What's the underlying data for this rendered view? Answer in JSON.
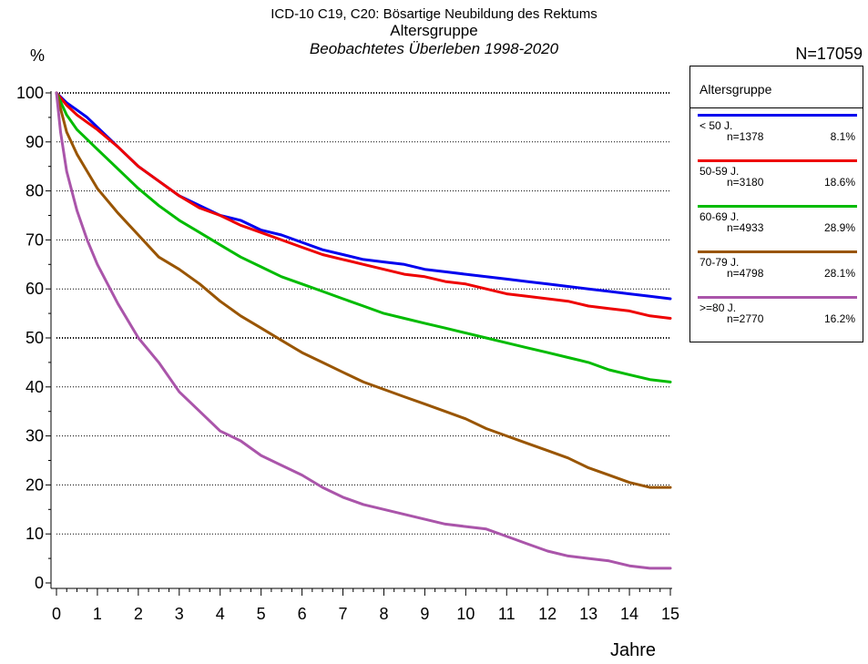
{
  "header": {
    "line1": "ICD-10 C19, C20: Bösartige Neubildung des Rektums",
    "line2": "Altersgruppe",
    "line3": "Beobachtetes Überleben 1998-2020",
    "n_total": "N=17059"
  },
  "legend": {
    "title": "Altersgruppe",
    "entries": [
      {
        "name": "< 50 J.",
        "n": "n=1378",
        "pct": "8.1%",
        "color": "#0000ee"
      },
      {
        "name": "50-59 J.",
        "n": "n=3180",
        "pct": "18.6%",
        "color": "#ee0000"
      },
      {
        "name": "60-69 J.",
        "n": "n=4933",
        "pct": "28.9%",
        "color": "#00bb00"
      },
      {
        "name": "70-79 J.",
        "n": "n=4798",
        "pct": "28.1%",
        "color": "#995500"
      },
      {
        "name": ">=80 J.",
        "n": "n=2770",
        "pct": "16.2%",
        "color": "#aa55aa"
      }
    ]
  },
  "chart_data": {
    "type": "line",
    "xlabel": "Jahre",
    "ylabel": "%",
    "xlim": [
      0,
      15
    ],
    "ylim": [
      0,
      100
    ],
    "x_ticks": [
      "0",
      "1",
      "2",
      "3",
      "4",
      "5",
      "6",
      "7",
      "8",
      "9",
      "10",
      "11",
      "12",
      "13",
      "14",
      "15"
    ],
    "y_ticks": [
      "0",
      "10",
      "20",
      "30",
      "40",
      "50",
      "60",
      "70",
      "80",
      "90",
      "100"
    ],
    "grid": "horizontal dotted",
    "legend_position": "right",
    "series": [
      {
        "name": "< 50 J.",
        "color": "#0000ee",
        "x": [
          0,
          0.25,
          0.5,
          0.75,
          1,
          1.5,
          2,
          2.5,
          3,
          3.5,
          4,
          4.5,
          5,
          5.5,
          6,
          6.5,
          7,
          7.5,
          8,
          8.5,
          9,
          9.5,
          10,
          10.5,
          11,
          11.5,
          12,
          12.5,
          13,
          13.5,
          14,
          14.5,
          15
        ],
        "y": [
          100,
          98,
          96.5,
          95,
          93,
          89,
          85,
          82,
          79,
          77,
          75,
          74,
          72,
          71,
          69.5,
          68,
          67,
          66,
          65.5,
          65,
          64,
          63.5,
          63,
          62.5,
          62,
          61.5,
          61,
          60.5,
          60,
          59.5,
          59,
          58.5,
          58
        ]
      },
      {
        "name": "50-59 J.",
        "color": "#ee0000",
        "x": [
          0,
          0.25,
          0.5,
          0.75,
          1,
          1.5,
          2,
          2.5,
          3,
          3.5,
          4,
          4.5,
          5,
          5.5,
          6,
          6.5,
          7,
          7.5,
          8,
          8.5,
          9,
          9.5,
          10,
          10.5,
          11,
          11.5,
          12,
          12.5,
          13,
          13.5,
          14,
          14.5,
          15
        ],
        "y": [
          100,
          97.5,
          95.5,
          94,
          92.5,
          89,
          85,
          82,
          79,
          76.5,
          75,
          73,
          71.5,
          70,
          68.5,
          67,
          66,
          65,
          64,
          63,
          62.5,
          61.5,
          61,
          60,
          59,
          58.5,
          58,
          57.5,
          56.5,
          56,
          55.5,
          54.5,
          54
        ]
      },
      {
        "name": "60-69 J.",
        "color": "#00bb00",
        "x": [
          0,
          0.25,
          0.5,
          0.75,
          1,
          1.5,
          2,
          2.5,
          3,
          3.5,
          4,
          4.5,
          5,
          5.5,
          6,
          6.5,
          7,
          7.5,
          8,
          8.5,
          9,
          9.5,
          10,
          10.5,
          11,
          11.5,
          12,
          12.5,
          13,
          13.5,
          14,
          14.5,
          15
        ],
        "y": [
          100,
          95.5,
          92.5,
          90.5,
          88.5,
          84.5,
          80.5,
          77,
          74,
          71.5,
          69,
          66.5,
          64.5,
          62.5,
          61,
          59.5,
          58,
          56.5,
          55,
          54,
          53,
          52,
          51,
          50,
          49,
          48,
          47,
          46,
          45,
          43.5,
          42.5,
          41.5,
          41
        ]
      },
      {
        "name": "70-79 J.",
        "color": "#995500",
        "x": [
          0,
          0.25,
          0.5,
          0.75,
          1,
          1.5,
          2,
          2.5,
          3,
          3.5,
          4,
          4.5,
          5,
          5.5,
          6,
          6.5,
          7,
          7.5,
          8,
          8.5,
          9,
          9.5,
          10,
          10.5,
          11,
          11.5,
          12,
          12.5,
          13,
          13.5,
          14,
          14.5,
          15
        ],
        "y": [
          100,
          92,
          87.5,
          84,
          80.5,
          75.5,
          71,
          66.5,
          64,
          61,
          57.5,
          54.5,
          52,
          49.5,
          47,
          45,
          43,
          41,
          39.5,
          38,
          36.5,
          35,
          33.5,
          31.5,
          30,
          28.5,
          27,
          25.5,
          23.5,
          22,
          20.5,
          19.5,
          19.5
        ]
      },
      {
        "name": ">=80 J.",
        "color": "#aa55aa",
        "x": [
          0,
          0.1,
          0.25,
          0.5,
          0.75,
          1,
          1.5,
          2,
          2.5,
          3,
          3.5,
          4,
          4.5,
          5,
          5.5,
          6,
          6.5,
          7,
          7.5,
          8,
          8.5,
          9,
          9.5,
          10,
          10.5,
          11,
          11.5,
          12,
          12.5,
          13,
          13.5,
          14,
          14.5,
          15
        ],
        "y": [
          100,
          92,
          84,
          76,
          70,
          65,
          57,
          50,
          45,
          39,
          35,
          31,
          29,
          26,
          24,
          22,
          19.5,
          17.5,
          16,
          15,
          14,
          13,
          12,
          11.5,
          11,
          9.5,
          8,
          6.5,
          5.5,
          5,
          4.5,
          3.5,
          3,
          3
        ]
      }
    ]
  }
}
